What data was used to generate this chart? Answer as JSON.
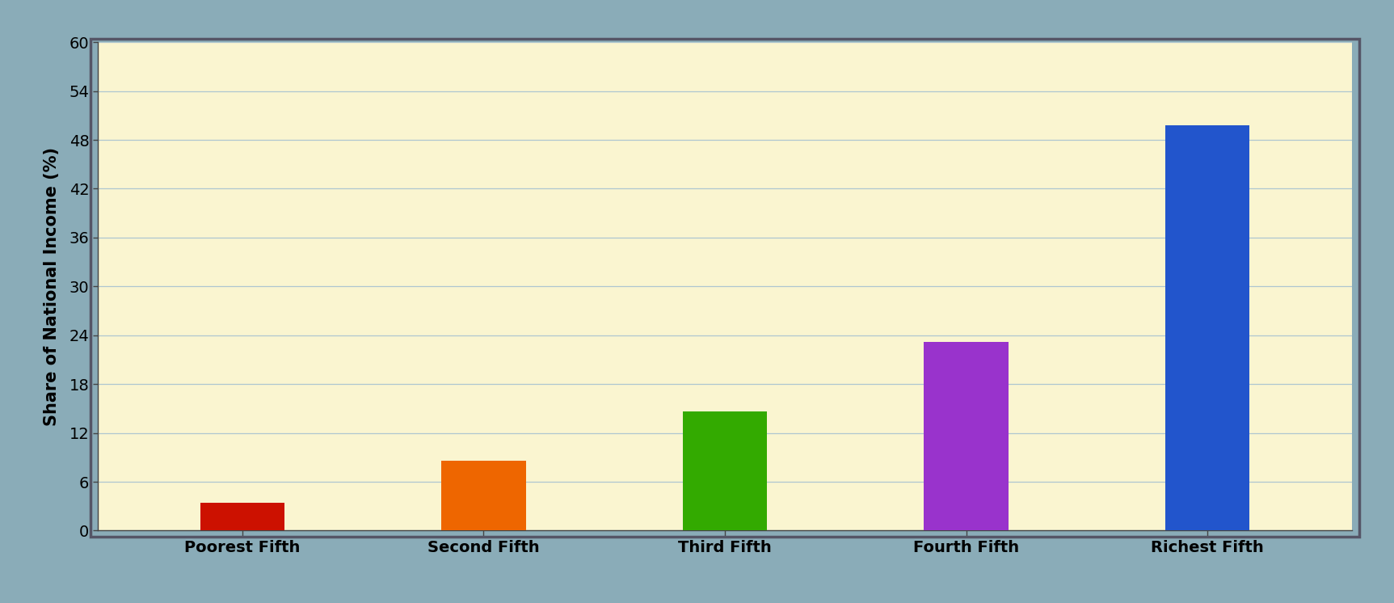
{
  "categories": [
    "Poorest Fifth",
    "Second Fifth",
    "Third Fifth",
    "Fourth Fifth",
    "Richest Fifth"
  ],
  "values": [
    3.4,
    8.6,
    14.6,
    23.2,
    49.8
  ],
  "bar_colors": [
    "#cc1100",
    "#ee6600",
    "#33aa00",
    "#9933cc",
    "#2255cc"
  ],
  "ylabel": "Share of National Income (%)",
  "ylim": [
    0,
    60
  ],
  "yticks": [
    0,
    6,
    12,
    18,
    24,
    30,
    36,
    42,
    48,
    54,
    60
  ],
  "background_color": "#faf5d0",
  "outer_background": "#8aacb8",
  "grid_color": "#aec6d0",
  "bar_width": 0.35,
  "ylabel_fontsize": 15,
  "tick_fontsize": 14,
  "xlabel_fontsize": 14
}
